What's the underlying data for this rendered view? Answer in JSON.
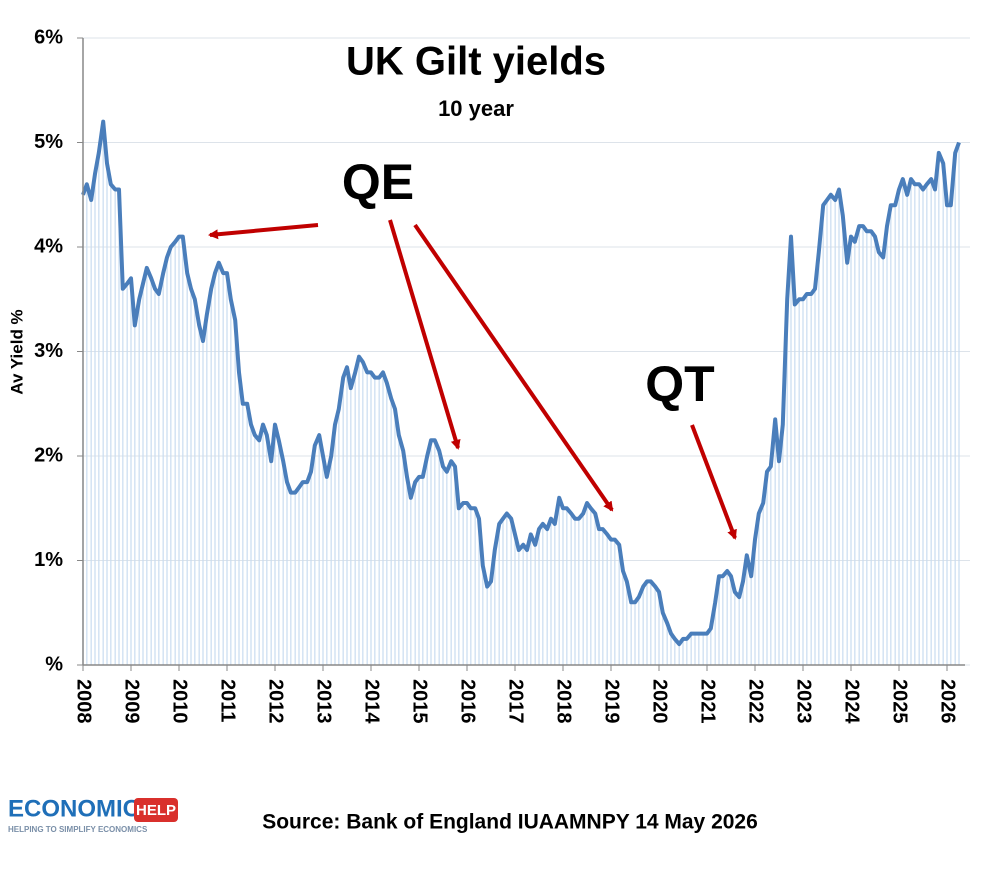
{
  "chart_data": {
    "type": "line",
    "title": "UK Gilt yields",
    "subtitle": "10 year",
    "y_label": "Av Yield %",
    "annotations": [
      "QE",
      "QT"
    ],
    "source": "Source: Bank of England IUAAMNPY 14 May 2026",
    "color": "#4a7ebb",
    "fill_color": "#c9dcf0",
    "grid": true,
    "xlim": [
      2008,
      2026.35
    ],
    "xticks": [
      2008,
      2009,
      2010,
      2011,
      2012,
      2013,
      2014,
      2015,
      2016,
      2017,
      2018,
      2019,
      2020,
      2021,
      2022,
      2023,
      2024,
      2025,
      2026
    ],
    "ylim": [
      0,
      6
    ],
    "yticks": [
      {
        "value": 0,
        "label": "%"
      },
      {
        "value": 1,
        "label": "1%"
      },
      {
        "value": 2,
        "label": "2%"
      },
      {
        "value": 3,
        "label": "3%"
      },
      {
        "value": 4,
        "label": "4%"
      },
      {
        "value": 5,
        "label": "5%"
      },
      {
        "value": 6,
        "label": "6%"
      }
    ],
    "x": [
      2008,
      2008.08,
      2008.17,
      2008.25,
      2008.33,
      2008.42,
      2008.5,
      2008.58,
      2008.67,
      2008.75,
      2008.83,
      2008.92,
      2009,
      2009.08,
      2009.17,
      2009.25,
      2009.33,
      2009.42,
      2009.5,
      2009.58,
      2009.67,
      2009.75,
      2009.83,
      2009.92,
      2010,
      2010.08,
      2010.17,
      2010.25,
      2010.33,
      2010.42,
      2010.5,
      2010.58,
      2010.67,
      2010.75,
      2010.83,
      2010.92,
      2011,
      2011.08,
      2011.17,
      2011.25,
      2011.33,
      2011.42,
      2011.5,
      2011.58,
      2011.67,
      2011.75,
      2011.83,
      2011.92,
      2012,
      2012.08,
      2012.17,
      2012.25,
      2012.33,
      2012.42,
      2012.5,
      2012.58,
      2012.67,
      2012.75,
      2012.83,
      2012.92,
      2013,
      2013.08,
      2013.17,
      2013.25,
      2013.33,
      2013.42,
      2013.5,
      2013.58,
      2013.67,
      2013.75,
      2013.83,
      2013.92,
      2014,
      2014.08,
      2014.17,
      2014.25,
      2014.33,
      2014.42,
      2014.5,
      2014.58,
      2014.67,
      2014.75,
      2014.83,
      2014.92,
      2015,
      2015.08,
      2015.17,
      2015.25,
      2015.33,
      2015.42,
      2015.5,
      2015.58,
      2015.67,
      2015.75,
      2015.83,
      2015.92,
      2016,
      2016.08,
      2016.17,
      2016.25,
      2016.33,
      2016.42,
      2016.5,
      2016.58,
      2016.67,
      2016.75,
      2016.83,
      2016.92,
      2017,
      2017.08,
      2017.17,
      2017.25,
      2017.33,
      2017.42,
      2017.5,
      2017.58,
      2017.67,
      2017.75,
      2017.83,
      2017.92,
      2018,
      2018.08,
      2018.17,
      2018.25,
      2018.33,
      2018.42,
      2018.5,
      2018.58,
      2018.67,
      2018.75,
      2018.83,
      2018.92,
      2019,
      2019.08,
      2019.17,
      2019.25,
      2019.33,
      2019.42,
      2019.5,
      2019.58,
      2019.67,
      2019.75,
      2019.83,
      2019.92,
      2020,
      2020.08,
      2020.17,
      2020.25,
      2020.33,
      2020.42,
      2020.5,
      2020.58,
      2020.67,
      2020.75,
      2020.83,
      2020.92,
      2021,
      2021.08,
      2021.17,
      2021.25,
      2021.33,
      2021.42,
      2021.5,
      2021.58,
      2021.67,
      2021.75,
      2021.83,
      2021.92,
      2022,
      2022.08,
      2022.17,
      2022.25,
      2022.33,
      2022.42,
      2022.5,
      2022.58,
      2022.67,
      2022.75,
      2022.83,
      2022.92,
      2023,
      2023.08,
      2023.17,
      2023.25,
      2023.33,
      2023.42,
      2023.5,
      2023.58,
      2023.67,
      2023.75,
      2023.83,
      2023.92,
      2024,
      2024.08,
      2024.17,
      2024.25,
      2024.33,
      2024.42,
      2024.5,
      2024.58,
      2024.67,
      2024.75,
      2024.83,
      2024.92,
      2025,
      2025.08,
      2025.17,
      2025.25,
      2025.33,
      2025.42,
      2025.5,
      2025.58,
      2025.67,
      2025.75,
      2025.83,
      2025.92,
      2026,
      2026.08,
      2026.17,
      2026.25
    ],
    "values": [
      4.5,
      4.6,
      4.45,
      4.7,
      4.9,
      5.2,
      4.8,
      4.6,
      4.55,
      4.55,
      3.6,
      3.65,
      3.7,
      3.25,
      3.5,
      3.65,
      3.8,
      3.7,
      3.6,
      3.55,
      3.75,
      3.9,
      4.0,
      4.05,
      4.1,
      4.1,
      3.75,
      3.6,
      3.5,
      3.25,
      3.1,
      3.35,
      3.6,
      3.75,
      3.85,
      3.75,
      3.75,
      3.5,
      3.3,
      2.8,
      2.5,
      2.5,
      2.3,
      2.2,
      2.15,
      2.3,
      2.2,
      1.95,
      2.3,
      2.15,
      1.95,
      1.75,
      1.65,
      1.65,
      1.7,
      1.75,
      1.75,
      1.85,
      2.1,
      2.2,
      2.0,
      1.8,
      2.0,
      2.3,
      2.45,
      2.75,
      2.85,
      2.65,
      2.8,
      2.95,
      2.9,
      2.8,
      2.8,
      2.75,
      2.75,
      2.8,
      2.7,
      2.55,
      2.45,
      2.2,
      2.05,
      1.8,
      1.6,
      1.75,
      1.8,
      1.8,
      2.0,
      2.15,
      2.15,
      2.05,
      1.9,
      1.85,
      1.95,
      1.9,
      1.5,
      1.55,
      1.55,
      1.5,
      1.5,
      1.4,
      0.95,
      0.75,
      0.8,
      1.1,
      1.35,
      1.4,
      1.45,
      1.4,
      1.25,
      1.1,
      1.15,
      1.1,
      1.25,
      1.15,
      1.3,
      1.35,
      1.3,
      1.4,
      1.35,
      1.6,
      1.5,
      1.5,
      1.45,
      1.4,
      1.4,
      1.45,
      1.55,
      1.5,
      1.45,
      1.3,
      1.3,
      1.25,
      1.2,
      1.2,
      1.15,
      0.9,
      0.8,
      0.6,
      0.6,
      0.65,
      0.75,
      0.8,
      0.8,
      0.75,
      0.7,
      0.5,
      0.4,
      0.3,
      0.25,
      0.2,
      0.25,
      0.25,
      0.3,
      0.3,
      0.3,
      0.3,
      0.3,
      0.35,
      0.6,
      0.85,
      0.85,
      0.9,
      0.85,
      0.7,
      0.65,
      0.8,
      1.05,
      0.85,
      1.2,
      1.45,
      1.55,
      1.85,
      1.9,
      2.35,
      1.95,
      2.3,
      3.5,
      4.1,
      3.45,
      3.5,
      3.5,
      3.55,
      3.55,
      3.6,
      3.95,
      4.4,
      4.45,
      4.5,
      4.45,
      4.55,
      4.3,
      3.85,
      4.1,
      4.05,
      4.2,
      4.2,
      4.15,
      4.15,
      4.1,
      3.95,
      3.9,
      4.2,
      4.4,
      4.4,
      4.55,
      4.65,
      4.5,
      4.65,
      4.6,
      4.6,
      4.55,
      4.6,
      4.65,
      4.55,
      4.9,
      4.8,
      4.4,
      4.4,
      4.9,
      5.0
    ]
  },
  "logo": {
    "text": "ECONOMICS",
    "tag": "HELP",
    "tagline": "HELPING TO SIMPLIFY ECONOMICS"
  }
}
